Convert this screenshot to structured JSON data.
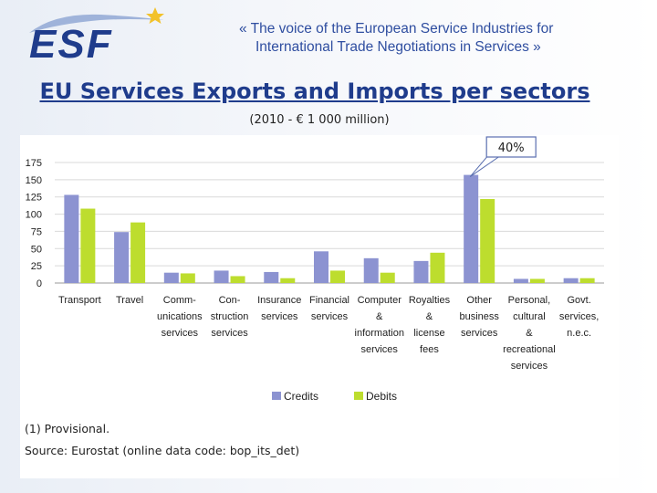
{
  "header": {
    "logo_text": "ESF",
    "tagline_line1": "«  The voice of the European Service Industries for",
    "tagline_line2": "International Trade Negotiations in Services  »"
  },
  "colors": {
    "credits": "#8c93d1",
    "debits": "#bddd2e",
    "brand_blue": "#1f3c8c",
    "star": "#f2c22b"
  },
  "chart_data": {
    "type": "bar",
    "title": "EU Services Exports and Imports per sectors",
    "subtitle": "(2010 - € 1 000 million)",
    "categories": [
      [
        "Transport"
      ],
      [
        "Travel"
      ],
      [
        "Comm-",
        "unications",
        "services"
      ],
      [
        "Con-",
        "struction",
        "services"
      ],
      [
        "Insurance",
        "services"
      ],
      [
        "Financial",
        "services"
      ],
      [
        "Computer",
        "&",
        "information",
        "services"
      ],
      [
        "Royalties",
        "&",
        "license",
        "fees"
      ],
      [
        "Other",
        "business",
        "services"
      ],
      [
        "Personal,",
        "cultural",
        "&",
        "recreational",
        "services"
      ],
      [
        "Govt.",
        "services,",
        "n.e.c."
      ]
    ],
    "series": [
      {
        "name": "Credits",
        "values": [
          128,
          74,
          15,
          18,
          16,
          46,
          36,
          32,
          157,
          6,
          7
        ]
      },
      {
        "name": "Debits",
        "values": [
          108,
          88,
          14,
          10,
          7,
          18,
          15,
          44,
          122,
          6,
          7
        ]
      }
    ],
    "y_ticks": [
      "0",
      "25",
      "50",
      "75",
      "100",
      "125",
      "150",
      "175"
    ],
    "ylim": [
      0,
      175
    ],
    "grid": true,
    "legend_position": "bottom",
    "callout": "40%"
  },
  "footnotes": {
    "note1": "(1) Provisional.",
    "source": "Source: Eurostat (online data code: bop_its_det)"
  }
}
